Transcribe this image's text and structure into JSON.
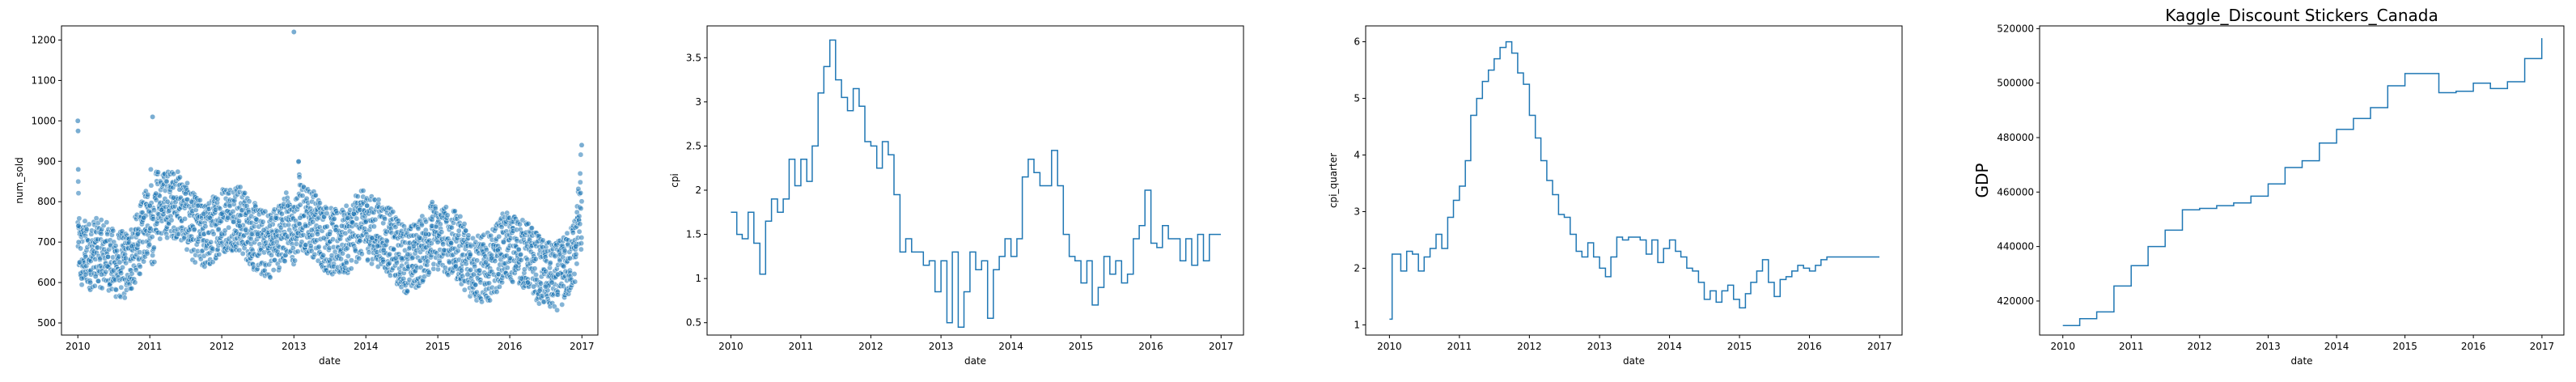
{
  "chart_data": [
    {
      "type": "scatter",
      "title": "",
      "xlabel": "date",
      "ylabel": "num_sold",
      "xlim": [
        "2009-10-10",
        "2017-03-23"
      ],
      "ylim": [
        470,
        1235
      ],
      "xticks": [
        "2010",
        "2011",
        "2012",
        "2013",
        "2014",
        "2015",
        "2016",
        "2017"
      ],
      "yticks": [
        500,
        600,
        700,
        800,
        900,
        1000,
        1100,
        1200
      ],
      "color": "#1f77b4",
      "grid": false,
      "series": [
        {
          "description_points": "daily points, 2010-01-01 to 2016-12-31",
          "x": [
            "2010-01-01",
            "2010-01-02",
            "2010-01-03",
            "2010-01-04",
            "2010-01-05",
            "2010-01-10",
            "2010-01-20",
            "2010-02-10",
            "2010-03-05",
            "2010-04-01",
            "2010-05-01",
            "2010-06-01",
            "2010-07-01",
            "2010-08-01",
            "2010-09-01",
            "2010-10-01",
            "2010-11-01",
            "2010-12-01",
            "2011-01-01",
            "2011-01-15",
            "2011-02-01",
            "2011-03-01",
            "2011-04-01",
            "2011-05-01",
            "2011-06-01",
            "2011-07-01",
            "2011-08-01",
            "2011-09-01",
            "2011-10-01",
            "2011-11-01",
            "2011-12-01",
            "2012-01-01",
            "2012-02-01",
            "2012-03-01",
            "2012-04-01",
            "2012-05-01",
            "2012-06-01",
            "2012-07-01",
            "2012-08-01",
            "2012-09-01",
            "2012-10-01",
            "2012-11-01",
            "2012-12-01",
            "2013-01-01",
            "2013-02-01",
            "2013-03-01",
            "2013-04-01",
            "2013-05-01",
            "2013-06-01",
            "2013-07-01",
            "2013-08-01",
            "2013-09-01",
            "2013-10-01",
            "2013-11-01",
            "2013-12-01",
            "2014-01-01",
            "2014-02-01",
            "2014-03-01",
            "2014-04-01",
            "2014-05-01",
            "2014-06-01",
            "2014-07-01",
            "2014-08-01",
            "2014-09-01",
            "2014-10-01",
            "2014-11-01",
            "2014-12-01",
            "2015-01-01",
            "2015-02-01",
            "2015-03-01",
            "2015-04-01",
            "2015-05-01",
            "2015-06-01",
            "2015-07-01",
            "2015-08-01",
            "2015-09-01",
            "2015-10-01",
            "2015-11-01",
            "2015-12-01",
            "2016-01-01",
            "2016-02-01",
            "2016-03-01",
            "2016-04-01",
            "2016-05-01",
            "2016-06-01",
            "2016-07-01",
            "2016-08-01",
            "2016-09-01",
            "2016-10-01",
            "2016-11-01",
            "2016-12-01",
            "2016-12-31"
          ],
          "y": [
            1000,
            975,
            880,
            740,
            700,
            650,
            610,
            620,
            600,
            615,
            620,
            640,
            630,
            650,
            660,
            690,
            720,
            760,
            790,
            1010,
            820,
            780,
            800,
            810,
            830,
            820,
            800,
            790,
            770,
            760,
            780,
            770,
            760,
            750,
            740,
            730,
            720,
            720,
            730,
            740,
            760,
            770,
            790,
            1220,
            760,
            740,
            730,
            720,
            710,
            720,
            730,
            740,
            760,
            770,
            780,
            750,
            710,
            690,
            680,
            670,
            660,
            660,
            670,
            690,
            710,
            720,
            740,
            700,
            680,
            650,
            640,
            630,
            620,
            620,
            630,
            650,
            660,
            680,
            700,
            660,
            640,
            610,
            600,
            590,
            580,
            590,
            600,
            620,
            640,
            660,
            690,
            940
          ]
        }
      ]
    },
    {
      "type": "line",
      "title": "",
      "xlabel": "date",
      "ylabel": "cpi",
      "drawstyle": "steps",
      "xlim": [
        "2009-08-30",
        "2017-04-28"
      ],
      "ylim": [
        0.36,
        3.86
      ],
      "xticks": [
        "2010",
        "2011",
        "2012",
        "2013",
        "2014",
        "2015",
        "2016",
        "2017"
      ],
      "yticks": [
        0.5,
        1.0,
        1.5,
        2.0,
        2.5,
        3.0,
        3.5
      ],
      "color": "#1f77b4",
      "grid": false,
      "series": [
        {
          "x": [
            "2010-01-01",
            "2010-02-01",
            "2010-03-01",
            "2010-04-01",
            "2010-05-01",
            "2010-06-01",
            "2010-07-01",
            "2010-08-01",
            "2010-09-01",
            "2010-10-01",
            "2010-11-01",
            "2010-12-01",
            "2011-01-01",
            "2011-02-01",
            "2011-03-01",
            "2011-04-01",
            "2011-05-01",
            "2011-06-01",
            "2011-07-01",
            "2011-08-01",
            "2011-09-01",
            "2011-10-01",
            "2011-11-01",
            "2011-12-01",
            "2012-01-01",
            "2012-02-01",
            "2012-03-01",
            "2012-04-01",
            "2012-05-01",
            "2012-06-01",
            "2012-07-01",
            "2012-08-01",
            "2012-09-01",
            "2012-10-01",
            "2012-11-01",
            "2012-12-01",
            "2013-01-01",
            "2013-02-01",
            "2013-03-01",
            "2013-04-01",
            "2013-05-01",
            "2013-06-01",
            "2013-07-01",
            "2013-08-01",
            "2013-09-01",
            "2013-10-01",
            "2013-11-01",
            "2013-12-01",
            "2014-01-01",
            "2014-02-01",
            "2014-03-01",
            "2014-04-01",
            "2014-05-01",
            "2014-06-01",
            "2014-07-01",
            "2014-08-01",
            "2014-09-01",
            "2014-10-01",
            "2014-11-01",
            "2014-12-01",
            "2015-01-01",
            "2015-02-01",
            "2015-03-01",
            "2015-04-01",
            "2015-05-01",
            "2015-06-01",
            "2015-07-01",
            "2015-08-01",
            "2015-09-01",
            "2015-10-01",
            "2015-11-01",
            "2015-12-01",
            "2016-01-01",
            "2016-02-01",
            "2016-03-01",
            "2016-04-01",
            "2016-05-01",
            "2016-06-01",
            "2016-07-01",
            "2016-08-01",
            "2016-09-01",
            "2016-10-01",
            "2016-11-01",
            "2016-12-01",
            "2016-12-31"
          ],
          "y": [
            1.75,
            1.5,
            1.45,
            1.75,
            1.4,
            1.05,
            1.65,
            1.9,
            1.75,
            1.9,
            2.35,
            2.05,
            2.35,
            2.1,
            2.5,
            3.1,
            3.4,
            3.7,
            3.25,
            3.05,
            2.9,
            3.15,
            2.95,
            2.55,
            2.5,
            2.25,
            2.55,
            2.4,
            1.95,
            1.3,
            1.45,
            1.3,
            1.3,
            1.15,
            1.2,
            0.85,
            1.2,
            0.5,
            1.3,
            0.45,
            0.85,
            1.3,
            1.1,
            1.2,
            0.55,
            1.1,
            1.25,
            1.45,
            1.25,
            1.45,
            2.15,
            2.35,
            2.2,
            2.05,
            2.05,
            2.45,
            2.05,
            1.5,
            1.25,
            1.2,
            0.95,
            1.2,
            0.7,
            0.9,
            1.25,
            1.05,
            1.2,
            0.95,
            1.05,
            1.45,
            1.6,
            2.0,
            1.4,
            1.35,
            1.6,
            1.45,
            1.45,
            1.2,
            1.45,
            1.15,
            1.5,
            1.2,
            1.5,
            1.5,
            1.5
          ]
        }
      ]
    },
    {
      "type": "line",
      "title": "",
      "xlabel": "date",
      "ylabel": "cpi_quarter",
      "drawstyle": "steps",
      "xlim": [
        "2009-08-30",
        "2017-04-28"
      ],
      "ylim": [
        0.82,
        6.28
      ],
      "xticks": [
        "2010",
        "2011",
        "2012",
        "2013",
        "2014",
        "2015",
        "2016",
        "2017"
      ],
      "yticks": [
        1,
        2,
        3,
        4,
        5,
        6
      ],
      "color": "#1f77b4",
      "grid": false,
      "series": [
        {
          "x": [
            "2010-01-01",
            "2010-01-15",
            "2010-03-01",
            "2010-04-01",
            "2010-05-01",
            "2010-06-01",
            "2010-07-01",
            "2010-08-01",
            "2010-09-01",
            "2010-10-01",
            "2010-11-01",
            "2010-12-01",
            "2011-01-01",
            "2011-02-01",
            "2011-03-01",
            "2011-04-01",
            "2011-05-01",
            "2011-06-01",
            "2011-07-01",
            "2011-08-01",
            "2011-09-01",
            "2011-10-01",
            "2011-11-01",
            "2011-12-01",
            "2012-01-01",
            "2012-02-01",
            "2012-03-01",
            "2012-04-01",
            "2012-05-01",
            "2012-06-01",
            "2012-07-01",
            "2012-08-01",
            "2012-09-01",
            "2012-10-01",
            "2012-11-01",
            "2012-12-01",
            "2013-01-01",
            "2013-02-01",
            "2013-03-01",
            "2013-04-01",
            "2013-05-01",
            "2013-06-01",
            "2013-07-01",
            "2013-08-01",
            "2013-09-01",
            "2013-10-01",
            "2013-11-01",
            "2013-12-01",
            "2014-01-01",
            "2014-02-01",
            "2014-03-01",
            "2014-04-01",
            "2014-05-01",
            "2014-06-01",
            "2014-07-01",
            "2014-08-01",
            "2014-09-01",
            "2014-10-01",
            "2014-11-01",
            "2014-12-01",
            "2015-01-01",
            "2015-02-01",
            "2015-03-01",
            "2015-04-01",
            "2015-05-01",
            "2015-06-01",
            "2015-07-01",
            "2015-08-01",
            "2015-09-01",
            "2015-10-01",
            "2015-11-01",
            "2015-12-01",
            "2016-01-01",
            "2016-02-01",
            "2016-03-01",
            "2016-04-01",
            "2016-05-01",
            "2016-06-01",
            "2016-07-01",
            "2016-08-01",
            "2016-09-01",
            "2016-10-01",
            "2016-11-01",
            "2016-12-01",
            "2016-12-31"
          ],
          "y": [
            1.1,
            2.25,
            1.95,
            2.3,
            2.25,
            1.95,
            2.2,
            2.35,
            2.6,
            2.35,
            2.9,
            3.2,
            3.45,
            3.9,
            4.7,
            5.0,
            5.3,
            5.5,
            5.7,
            5.9,
            6.0,
            5.8,
            5.45,
            5.25,
            4.7,
            4.3,
            3.9,
            3.55,
            3.3,
            2.95,
            2.9,
            2.6,
            2.3,
            2.2,
            2.45,
            2.2,
            2.0,
            1.85,
            2.2,
            2.55,
            2.5,
            2.55,
            2.55,
            2.5,
            2.25,
            2.5,
            2.1,
            2.35,
            2.5,
            2.3,
            2.2,
            2.0,
            1.95,
            1.75,
            1.45,
            1.6,
            1.4,
            1.6,
            1.7,
            1.45,
            1.3,
            1.55,
            1.75,
            1.95,
            2.15,
            1.75,
            1.5,
            1.8,
            1.85,
            1.95,
            2.05,
            2.0,
            1.95,
            2.05,
            2.15,
            2.2,
            2.2,
            2.2,
            2.2,
            2.2,
            2.2,
            2.2,
            2.2,
            2.2,
            2.2
          ]
        }
      ]
    },
    {
      "type": "line",
      "title": "Kaggle_Discount Stickers_Canada",
      "xlabel": "date",
      "ylabel": "GDP",
      "drawstyle": "steps",
      "xlim": [
        "2009-08-30",
        "2017-04-28"
      ],
      "ylim": [
        407500,
        521000
      ],
      "xticks": [
        "2010",
        "2011",
        "2012",
        "2013",
        "2014",
        "2015",
        "2016",
        "2017"
      ],
      "yticks": [
        420000,
        440000,
        460000,
        480000,
        500000,
        520000
      ],
      "color": "#1f77b4",
      "grid": false,
      "series": [
        {
          "x": [
            "2010-01-01",
            "2010-04-01",
            "2010-07-01",
            "2010-10-01",
            "2011-01-01",
            "2011-04-01",
            "2011-07-01",
            "2011-10-01",
            "2012-01-01",
            "2012-04-01",
            "2012-07-01",
            "2012-10-01",
            "2013-01-01",
            "2013-04-01",
            "2013-07-01",
            "2013-10-01",
            "2014-01-01",
            "2014-04-01",
            "2014-07-01",
            "2014-10-01",
            "2015-01-01",
            "2015-04-01",
            "2015-07-01",
            "2015-10-01",
            "2016-01-01",
            "2016-04-01",
            "2016-07-01",
            "2016-10-01",
            "2016-12-31"
          ],
          "y": [
            411000,
            413500,
            416000,
            425500,
            433000,
            440000,
            446000,
            453500,
            454000,
            455000,
            456000,
            458500,
            463000,
            469000,
            471500,
            478000,
            483000,
            487000,
            491000,
            499000,
            503500,
            503500,
            496500,
            497000,
            500000,
            498000,
            500500,
            509000,
            516500
          ]
        }
      ]
    }
  ]
}
